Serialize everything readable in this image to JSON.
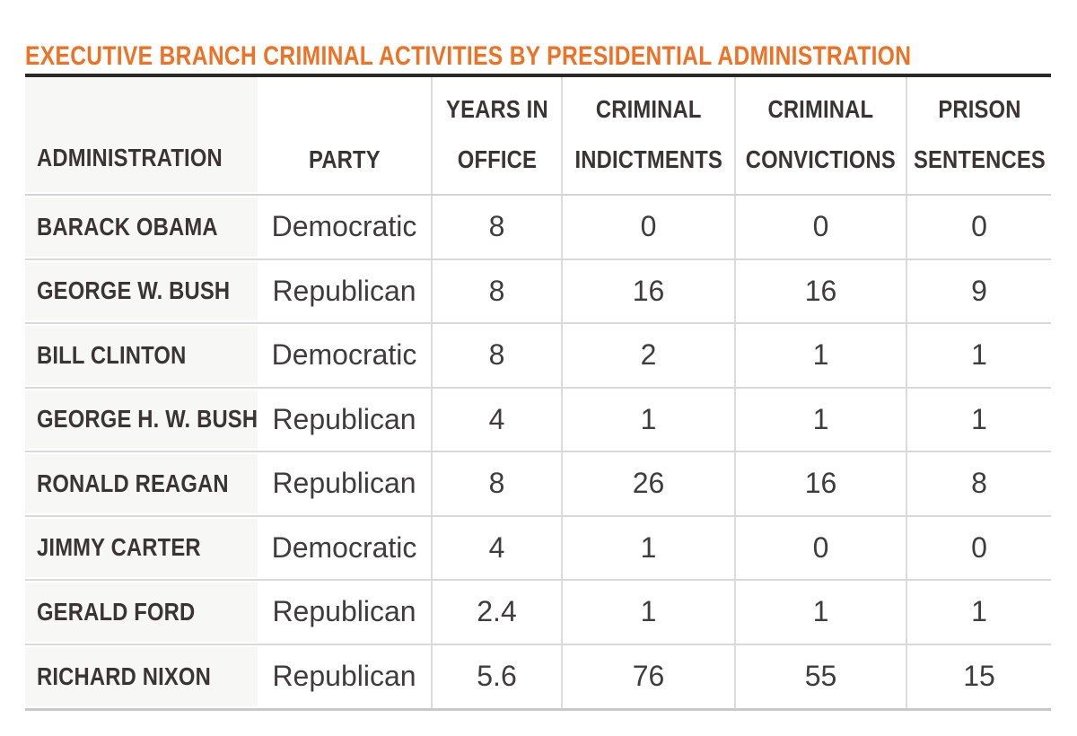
{
  "title": "EXECUTIVE BRANCH CRIMINAL ACTIVITIES BY PRESIDENTIAL ADMINISTRATION",
  "colors": {
    "title_orange": "#ED7226",
    "table_top_border": "#2B2828",
    "table_bottom_border": "#C9C9C9",
    "row_divider": "#D9D9D9",
    "column_divider": "#DCDCDC",
    "admin_column_background": "#F7F7F6",
    "header_text": "#3A3534",
    "body_text": "#3E3C3C"
  },
  "header": {
    "labels": [
      "ADMINISTRATION",
      "PARTY",
      "YEARS IN\nOFFICE",
      "CRIMINAL\nINDICTMENTS",
      "CRIMINAL\nCONVICTIONS",
      "PRISON\nSENTENCES"
    ]
  },
  "chart_data": {
    "type": "table",
    "title": "EXECUTIVE BRANCH CRIMINAL ACTIVITIES BY PRESIDENTIAL ADMINISTRATION",
    "columns": [
      "ADMINISTRATION",
      "PARTY",
      "YEARS IN OFFICE",
      "CRIMINAL INDICTMENTS",
      "CRIMINAL CONVICTIONS",
      "PRISON SENTENCES"
    ],
    "rows": [
      {
        "admin": "BARACK OBAMA",
        "party": "Democratic",
        "years": 8,
        "indictments": 0,
        "convictions": 0,
        "sentences": 0
      },
      {
        "admin": "GEORGE W. BUSH",
        "party": "Republican",
        "years": 8,
        "indictments": 16,
        "convictions": 16,
        "sentences": 9
      },
      {
        "admin": "BILL CLINTON",
        "party": "Democratic",
        "years": 8,
        "indictments": 2,
        "convictions": 1,
        "sentences": 1
      },
      {
        "admin": "GEORGE H. W. BUSH",
        "party": "Republican",
        "years": 4,
        "indictments": 1,
        "convictions": 1,
        "sentences": 1
      },
      {
        "admin": "RONALD REAGAN",
        "party": "Republican",
        "years": 8,
        "indictments": 26,
        "convictions": 16,
        "sentences": 8
      },
      {
        "admin": "JIMMY CARTER",
        "party": "Democratic",
        "years": 4,
        "indictments": 1,
        "convictions": 0,
        "sentences": 0
      },
      {
        "admin": "GERALD FORD",
        "party": "Republican",
        "years": 2.4,
        "indictments": 1,
        "convictions": 1,
        "sentences": 1
      },
      {
        "admin": "RICHARD NIXON",
        "party": "Republican",
        "years": 5.6,
        "indictments": 76,
        "convictions": 55,
        "sentences": 15
      }
    ]
  }
}
